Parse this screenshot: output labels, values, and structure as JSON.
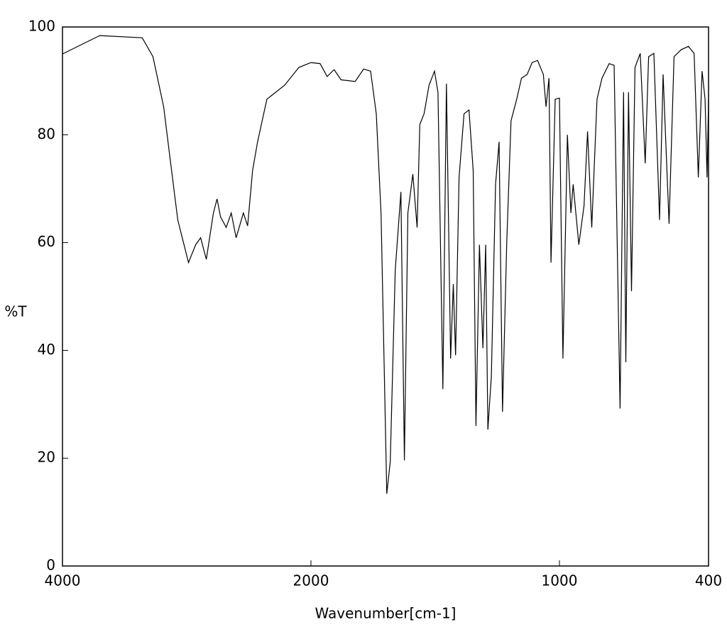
{
  "chart_data": {
    "type": "line",
    "xlabel": "Wavenumber[cm-1]",
    "ylabel": "%T",
    "x": [
      4000,
      3700,
      3358,
      3272,
      3186,
      3129,
      3072,
      2986,
      2928,
      2888,
      2842,
      2785,
      2756,
      2728,
      2682,
      2642,
      2602,
      2544,
      2510,
      2470,
      2430,
      2355,
      2212,
      2097,
      2000,
      1963,
      1935,
      1907,
      1879,
      1822,
      1788,
      1760,
      1737,
      1718,
      1695,
      1681,
      1661,
      1638,
      1624,
      1610,
      1590,
      1573,
      1562,
      1545,
      1525,
      1503,
      1489,
      1469,
      1455,
      1438,
      1427,
      1418,
      1404,
      1384,
      1364,
      1347,
      1336,
      1322,
      1308,
      1297,
      1288,
      1274,
      1257,
      1243,
      1229,
      1212,
      1195,
      1172,
      1153,
      1130,
      1110,
      1088,
      1065,
      1054,
      1042,
      1034,
      1017,
      1000,
      986,
      968,
      954,
      945,
      922,
      901,
      887,
      870,
      849,
      829,
      800,
      780,
      756,
      742,
      733,
      722,
      710,
      696,
      675,
      655,
      641,
      620,
      597,
      583,
      559,
      539,
      510,
      481,
      458,
      441,
      426,
      414,
      406,
      400
    ],
    "series": [
      {
        "color": "#000000",
        "values": [
          95,
          98.4,
          98,
          94.5,
          85.2,
          74.7,
          64.2,
          56.3,
          59.6,
          60.9,
          56.9,
          65.5,
          68.1,
          64.8,
          62.8,
          65.5,
          60.9,
          65.5,
          63.1,
          73.4,
          78.7,
          86.6,
          89.2,
          92.5,
          93.4,
          93.2,
          90.8,
          92.1,
          90.2,
          89.9,
          92.2,
          91.8,
          83.9,
          65.5,
          13.4,
          19.4,
          54.9,
          69.4,
          19.6,
          65.5,
          72.7,
          62.8,
          81.9,
          83.9,
          89.2,
          91.8,
          87.9,
          32.8,
          89.5,
          38.5,
          52.3,
          39.1,
          72.1,
          83.9,
          84.6,
          73.4,
          26,
          59.6,
          40.4,
          59.6,
          25.3,
          35.2,
          70.8,
          78.7,
          28.6,
          60.2,
          82.6,
          86.6,
          90.5,
          91.2,
          93.4,
          93.8,
          91.2,
          85.2,
          90.5,
          56.3,
          86.6,
          86.8,
          38.5,
          80,
          65.5,
          70.8,
          59.6,
          66.8,
          80.6,
          62.8,
          86.6,
          90.5,
          93.2,
          92.9,
          29.2,
          87.9,
          37.8,
          87.9,
          51,
          92.5,
          95.1,
          74.7,
          94.5,
          95.1,
          64.2,
          91.2,
          63.5,
          94.5,
          95.8,
          96.4,
          95.1,
          72.1,
          91.8,
          86.6,
          72.1,
          86.6
        ]
      }
    ],
    "xlim": [
      4000,
      400
    ],
    "xticks": [
      4000,
      2000,
      1000,
      400
    ],
    "x_scale_break": 2000,
    "ylim": [
      0,
      100
    ],
    "yticks": [
      0,
      20,
      40,
      60,
      80,
      100
    ]
  }
}
